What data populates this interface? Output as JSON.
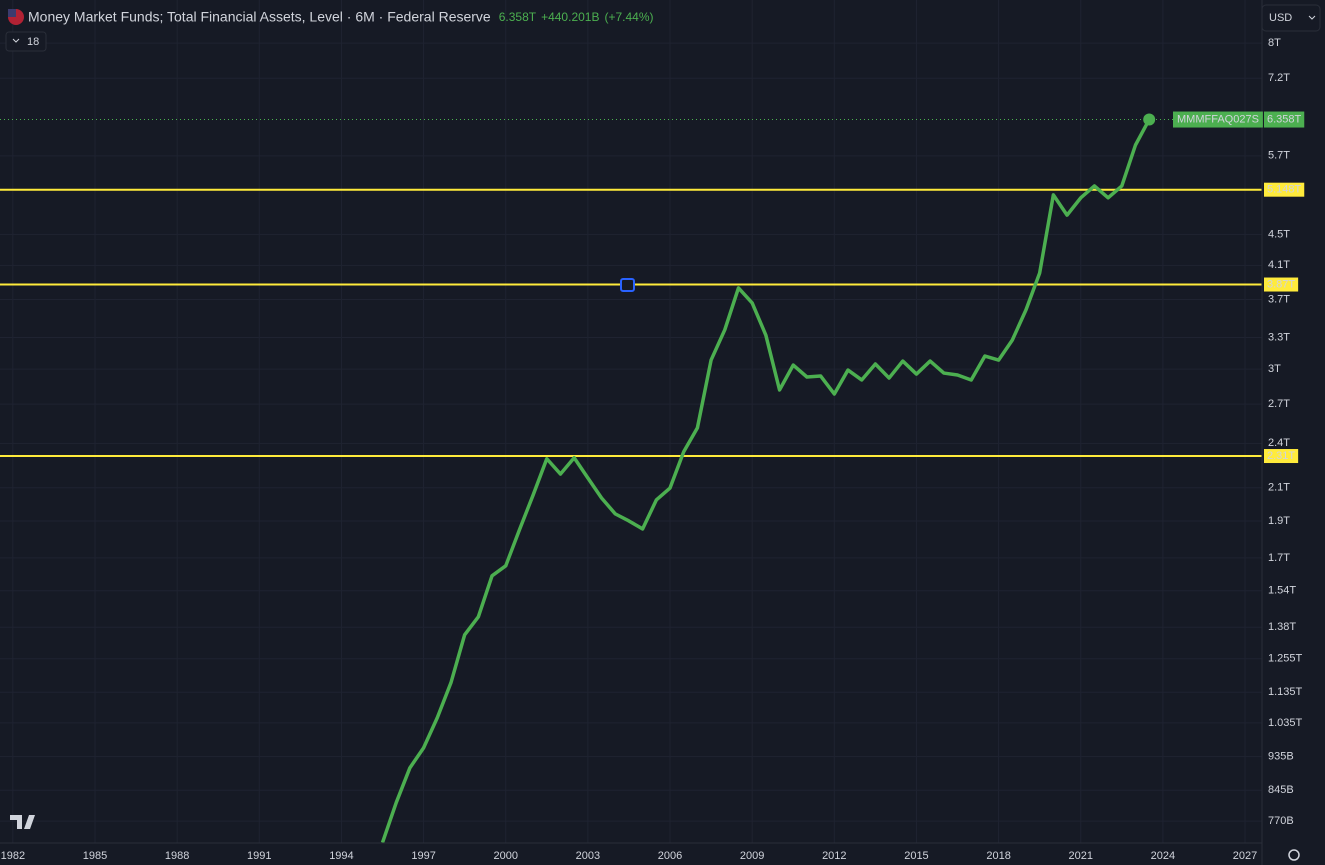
{
  "header": {
    "title": "Money Market Funds; Total Financial Assets, Level · 6M · Federal Reserve",
    "price": "6.358T",
    "change": "+440.201B",
    "change_pct": "(+7.44%)",
    "interval_count": "18",
    "currency": "USD"
  },
  "chart_data": {
    "type": "line",
    "log_scale": true,
    "grid": true,
    "x": [
      1995.5,
      1996,
      1996.5,
      1997,
      1997.5,
      1998,
      1998.5,
      1999,
      1999.5,
      2000,
      2000.5,
      2001,
      2001.5,
      2002,
      2002.5,
      2003,
      2003.5,
      2004,
      2004.5,
      2005,
      2005.5,
      2006,
      2006.5,
      2007,
      2007.5,
      2008,
      2008.5,
      2009,
      2009.5,
      2010,
      2010.5,
      2011,
      2011.5,
      2012,
      2012.5,
      2013,
      2013.5,
      2014,
      2014.5,
      2015,
      2015.5,
      2016,
      2016.5,
      2017,
      2017.5,
      2018,
      2018.5,
      2019,
      2019.5,
      2020,
      2020.5,
      2021,
      2021.5,
      2022,
      2022.5,
      2023,
      2023.5
    ],
    "series": [
      {
        "name": "MMMFFAQ027S",
        "color": "#4caf50",
        "values": [
          0.722,
          0.814,
          0.904,
          0.96,
          1.051,
          1.168,
          1.349,
          1.424,
          1.611,
          1.66,
          1.85,
          2.054,
          2.291,
          2.188,
          2.298,
          2.162,
          2.036,
          1.941,
          1.9,
          1.855,
          2.024,
          2.098,
          2.34,
          2.514,
          3.083,
          3.377,
          3.831,
          3.662,
          3.323,
          2.818,
          3.037,
          2.93,
          2.939,
          2.784,
          2.992,
          2.904,
          3.047,
          2.921,
          3.074,
          2.956,
          3.074,
          2.965,
          2.948,
          2.904,
          3.121,
          3.083,
          3.274,
          3.586,
          4.007,
          5.068,
          4.769,
          5.023,
          5.207,
          5.023,
          5.207,
          5.889,
          6.358
        ],
        "last_label": "6.358T"
      }
    ],
    "xlim": [
      1981.53,
      2027.62
    ],
    "xticks": [
      1982,
      1985,
      1988,
      1991,
      1994,
      1997,
      2000,
      2003,
      2006,
      2009,
      2012,
      2015,
      2018,
      2021,
      2024,
      2027
    ],
    "ylim": [
      0.721,
      9.11
    ],
    "yticks": [
      {
        "value": 8,
        "label": "8T"
      },
      {
        "value": 7.2,
        "label": "7.2T"
      },
      {
        "value": 5.7,
        "label": "5.7T"
      },
      {
        "value": 4.5,
        "label": "4.5T"
      },
      {
        "value": 4.1,
        "label": "4.1T"
      },
      {
        "value": 3.7,
        "label": "3.7T"
      },
      {
        "value": 3.3,
        "label": "3.3T"
      },
      {
        "value": 3,
        "label": "3T"
      },
      {
        "value": 2.7,
        "label": "2.7T"
      },
      {
        "value": 2.4,
        "label": "2.4T"
      },
      {
        "value": 2.1,
        "label": "2.1T"
      },
      {
        "value": 1.9,
        "label": "1.9T"
      },
      {
        "value": 1.7,
        "label": "1.7T"
      },
      {
        "value": 1.54,
        "label": "1.54T"
      },
      {
        "value": 1.38,
        "label": "1.38T"
      },
      {
        "value": 1.255,
        "label": "1.255T"
      },
      {
        "value": 1.135,
        "label": "1.135T"
      },
      {
        "value": 1.035,
        "label": "1.035T"
      },
      {
        "value": 0.935,
        "label": "935B"
      },
      {
        "value": 0.845,
        "label": "845B"
      },
      {
        "value": 0.77,
        "label": "770B"
      }
    ],
    "hlines": [
      {
        "value": 5.148,
        "label": "5.148T",
        "color": "#ffeb3b"
      },
      {
        "value": 3.87,
        "label": "3.87T",
        "color": "#ffeb3b"
      },
      {
        "value": 2.31,
        "label": "2.31T",
        "color": "#ffeb3b"
      }
    ]
  }
}
